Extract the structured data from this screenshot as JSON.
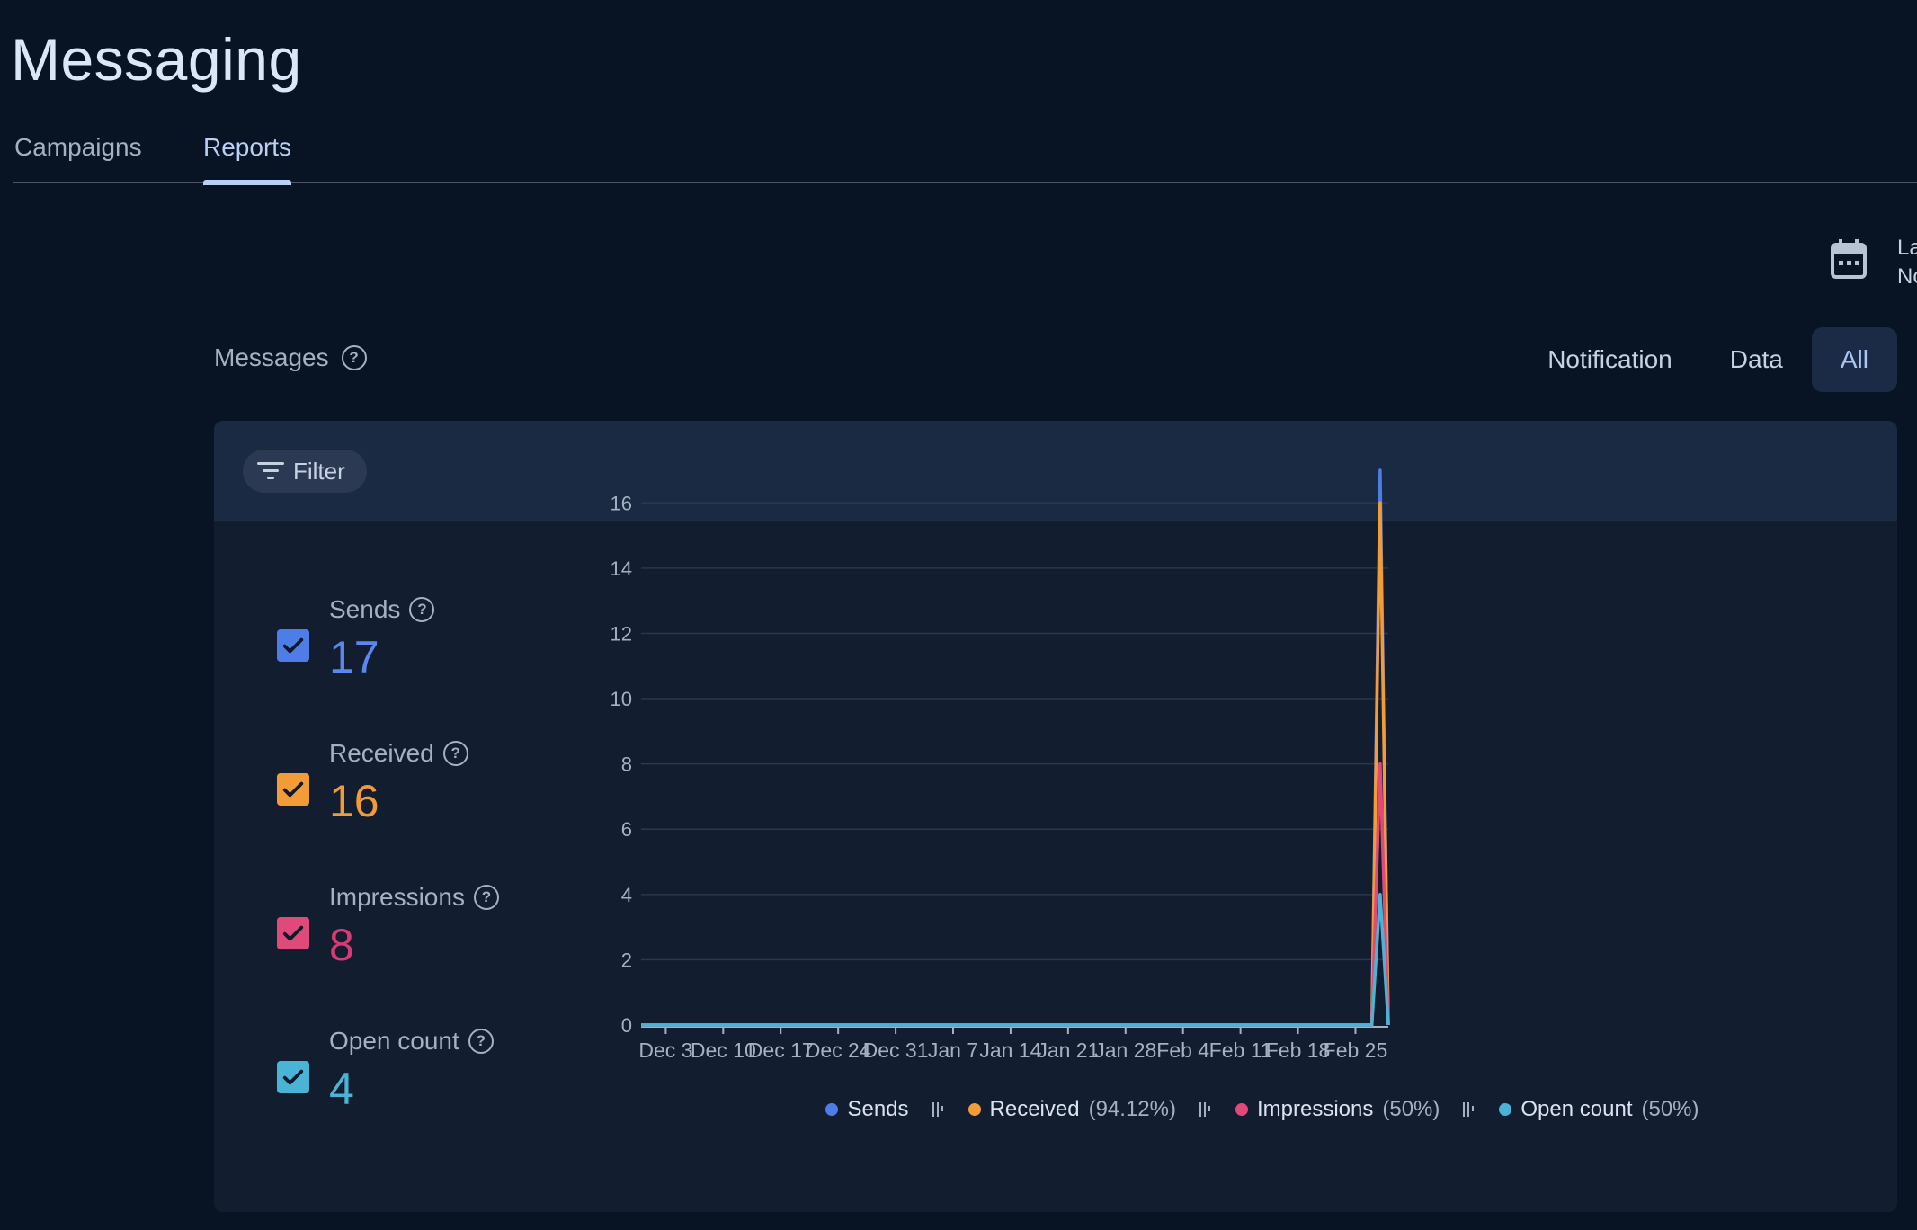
{
  "header": {
    "title": "Messaging"
  },
  "tabs": [
    {
      "label": "Campaigns"
    },
    {
      "label": "Reports",
      "active": true
    }
  ],
  "date_range": {
    "line1": "La",
    "line2": "No"
  },
  "messages": {
    "label": "Messages",
    "types": [
      {
        "label": "Notification"
      },
      {
        "label": "Data"
      },
      {
        "label": "All",
        "active": true
      }
    ]
  },
  "filter": {
    "label": "Filter"
  },
  "metrics": [
    {
      "label": "Sends",
      "value": "17",
      "color": "#4f7de8",
      "valueColor": "#5b87ee"
    },
    {
      "label": "Received",
      "value": "16",
      "color": "#f29c38",
      "valueColor": "#f29c38"
    },
    {
      "label": "Impressions",
      "value": "8",
      "color": "#e04a7a",
      "valueColor": "#d93a72"
    },
    {
      "label": "Open count",
      "value": "4",
      "color": "#4bb3d6",
      "valueColor": "#4bb3d6"
    }
  ],
  "legend": [
    {
      "name": "Sends",
      "pct": "",
      "color": "#4f7de8"
    },
    {
      "name": "Received",
      "pct": "(94.12%)",
      "color": "#f29c38"
    },
    {
      "name": "Impressions",
      "pct": "(50%)",
      "color": "#e04a7a"
    },
    {
      "name": "Open count",
      "pct": "(50%)",
      "color": "#4bb3d6"
    }
  ],
  "chart_data": {
    "type": "line",
    "x_ticks": [
      "Dec 3",
      "Dec 10",
      "Dec 17",
      "Dec 24",
      "Dec 31",
      "Jan 7",
      "Jan 14",
      "Jan 21",
      "Jan 28",
      "Feb 4",
      "Feb 11",
      "Feb 18",
      "Feb 25"
    ],
    "y_ticks": [
      0,
      2,
      4,
      6,
      8,
      10,
      12,
      14,
      16
    ],
    "ylim": [
      0,
      17
    ],
    "xrange": [
      "Nov 30",
      "Feb 29"
    ],
    "grid": true,
    "legend_position": "bottom",
    "series": [
      {
        "name": "Sends",
        "color": "#4f7de8",
        "points": [
          [
            "Nov 30",
            0
          ],
          [
            "Feb 27",
            0
          ],
          [
            "Feb 28",
            17
          ],
          [
            "Feb 29",
            0
          ]
        ]
      },
      {
        "name": "Received",
        "color": "#f29c38",
        "points": [
          [
            "Nov 30",
            0
          ],
          [
            "Feb 27",
            0
          ],
          [
            "Feb 28",
            16
          ],
          [
            "Feb 29",
            0
          ]
        ]
      },
      {
        "name": "Impressions",
        "color": "#e04a7a",
        "points": [
          [
            "Nov 30",
            0
          ],
          [
            "Feb 27",
            0
          ],
          [
            "Feb 28",
            8
          ],
          [
            "Feb 29",
            0
          ]
        ]
      },
      {
        "name": "Open count",
        "color": "#4bb3d6",
        "points": [
          [
            "Nov 30",
            0
          ],
          [
            "Feb 27",
            0
          ],
          [
            "Feb 28",
            4
          ],
          [
            "Feb 29",
            0
          ]
        ]
      }
    ]
  }
}
